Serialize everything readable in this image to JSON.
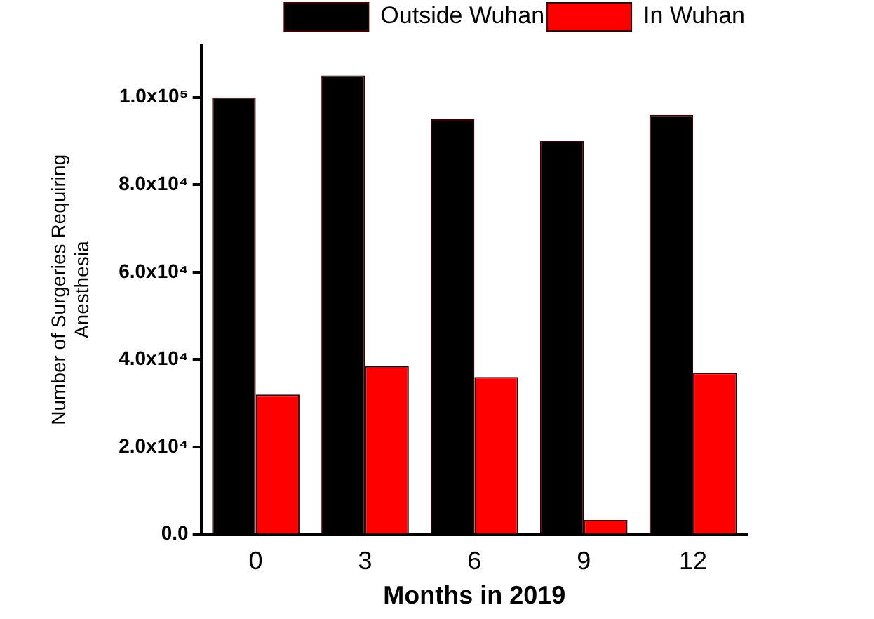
{
  "chart_data": {
    "type": "bar",
    "xlabel": "Months in 2019",
    "ylabel": "Number of Surgeries Requiring Anesthesia",
    "categories": [
      "0",
      "3",
      "6",
      "9",
      "12"
    ],
    "series": [
      {
        "name": "Outside Wuhan",
        "color": "#000000",
        "values": [
          100000,
          105000,
          95000,
          90000,
          96000
        ]
      },
      {
        "name": "In Wuhan",
        "color": "#ff0000",
        "values": [
          32000,
          38500,
          36000,
          3300,
          37000
        ]
      }
    ],
    "ylim": [
      0,
      112000
    ],
    "yticks": [
      {
        "value": 0,
        "label": "0.0"
      },
      {
        "value": 20000,
        "label": "2.0x10⁴"
      },
      {
        "value": 40000,
        "label": "4.0x10⁴"
      },
      {
        "value": 60000,
        "label": "6.0x10⁴"
      },
      {
        "value": 80000,
        "label": "8.0x10⁴"
      },
      {
        "value": 100000,
        "label": "1.0x10⁵"
      }
    ],
    "grid": false,
    "legend": "top right"
  }
}
